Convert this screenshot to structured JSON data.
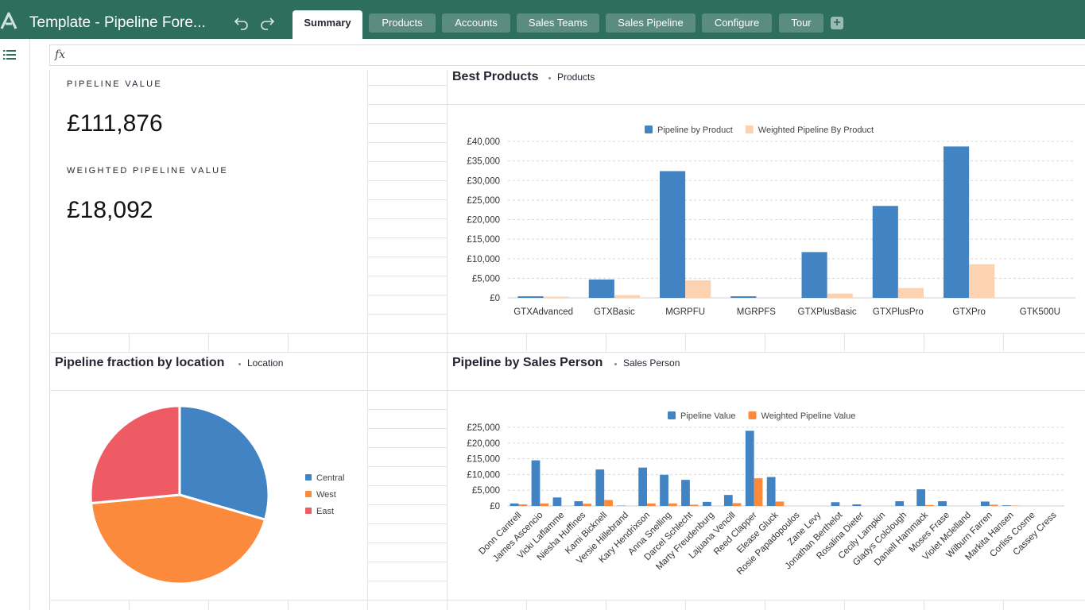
{
  "doc_title": "Template - Pipeline Fore...",
  "tabs": [
    {
      "label": "Summary",
      "active": true
    },
    {
      "label": "Products",
      "active": false
    },
    {
      "label": "Accounts",
      "active": false
    },
    {
      "label": "Sales Teams",
      "active": false
    },
    {
      "label": "Sales Pipeline",
      "active": false
    },
    {
      "label": "Configure",
      "active": false
    },
    {
      "label": "Tour",
      "active": false
    }
  ],
  "add_tab_label": "+",
  "formula_bar": {
    "fx_label": "fx"
  },
  "colors": {
    "topbar": "#2e6e5d",
    "blue": "#4284c3",
    "peach": "#fdd2b1",
    "orange": "#fc8a3d",
    "red": "#ef5b64"
  },
  "cards": {
    "pipeline_label": "PIPELINE VALUE",
    "pipeline_value": "£111,876",
    "weighted_label": "WEIGHTED PIPELINE VALUE",
    "weighted_value": "£18,092"
  },
  "best_products": {
    "title": "Best Products",
    "subtitle": "Products"
  },
  "location": {
    "title": "Pipeline fraction by location",
    "subtitle": "Location"
  },
  "sales_person": {
    "title": "Pipeline by Sales Person",
    "subtitle": "Sales Person"
  },
  "chart_data": [
    {
      "type": "bar",
      "categories": [
        "GTXAdvanced",
        "GTXBasic",
        "MGRPFU",
        "MGRPFS",
        "GTXPlusBasic",
        "GTXPlusPro",
        "GTXPro",
        "GTK500U"
      ],
      "series": [
        {
          "name": "Pipeline by Product",
          "color": "#4284c3",
          "values": [
            400,
            4700,
            32400,
            400,
            11700,
            23500,
            38700,
            0
          ]
        },
        {
          "name": "Weighted Pipeline By Product",
          "color": "#fdd2b1",
          "values": [
            300,
            700,
            4500,
            0,
            1100,
            2500,
            8600,
            0
          ]
        }
      ],
      "yticks": [
        "£0",
        "£5,000",
        "£10,000",
        "£15,000",
        "£20,000",
        "£25,000",
        "£30,000",
        "£35,000",
        "£40,000"
      ],
      "ylim": [
        0,
        40000
      ],
      "legend": "top",
      "grid": true
    },
    {
      "type": "pie",
      "labels": [
        "Central",
        "West",
        "East"
      ],
      "values": [
        29.5,
        44,
        26.5
      ],
      "colors": [
        "#4284c3",
        "#fc8a3d",
        "#ef5b64"
      ],
      "legend": "right"
    },
    {
      "type": "bar",
      "categories": [
        "Donn Cantrell",
        "James Ascencio",
        "Vicki Laflamme",
        "Niesha Huffines",
        "Kami Bicknell",
        "Versie Hillebrand",
        "Kary Hendrixson",
        "Anna Snelling",
        "Darcel Schlecht",
        "Marty Freudenburg",
        "Lajuana Vencill",
        "Reed Clapper",
        "Elease Gluck",
        "Rosie Papadopoulos",
        "Zane Levy",
        "Jonathan Berthelot",
        "Rosalina Dieter",
        "Cecily Lampkin",
        "Gladys Colclough",
        "Daniell Hammack",
        "Moses Frase",
        "Violet Mclelland",
        "Wilburn Farren",
        "Markita Hansen",
        "Corliss Cosme",
        "Cassey Cress"
      ],
      "series": [
        {
          "name": "Pipeline Value",
          "color": "#4284c3",
          "values": [
            800,
            14500,
            2700,
            1500,
            11600,
            100,
            12200,
            9900,
            8300,
            1300,
            3500,
            23900,
            9200,
            0,
            0,
            1200,
            500,
            0,
            1500,
            5300,
            1500,
            0,
            1400,
            200,
            0,
            0
          ]
        },
        {
          "name": "Weighted Pipeline Value",
          "color": "#fc8a3d",
          "values": [
            500,
            800,
            0,
            700,
            1900,
            0,
            800,
            800,
            400,
            0,
            900,
            8800,
            1400,
            0,
            0,
            0,
            0,
            0,
            0,
            300,
            0,
            0,
            400,
            100,
            0,
            0
          ]
        }
      ],
      "yticks": [
        "£0",
        "£5,000",
        "£10,000",
        "£15,000",
        "£20,000",
        "£25,000"
      ],
      "ylim": [
        0,
        25000
      ],
      "legend": "top",
      "grid": true
    }
  ]
}
